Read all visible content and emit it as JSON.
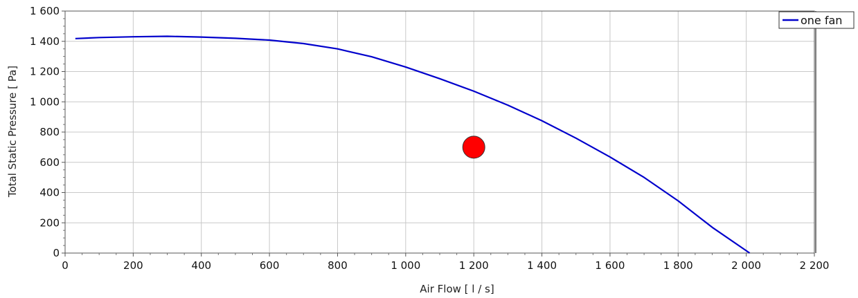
{
  "chart_data": {
    "type": "line",
    "title": "",
    "xlabel": "Air Flow  [ l / s]",
    "ylabel": "Total Static Pressure  [ Pa]",
    "xlim": [
      0,
      2200
    ],
    "ylim": [
      0,
      1600
    ],
    "x_ticks": [
      0,
      200,
      400,
      600,
      800,
      1000,
      1200,
      1400,
      1600,
      1800,
      2000,
      2200
    ],
    "x_tick_labels": [
      "0",
      "200",
      "400",
      "600",
      "800",
      "1 000",
      "1 200",
      "1 400",
      "1 600",
      "1 800",
      "2 000",
      "2 200"
    ],
    "y_ticks": [
      0,
      200,
      400,
      600,
      800,
      1000,
      1200,
      1400,
      1600
    ],
    "y_tick_labels": [
      "0",
      "200",
      "400",
      "600",
      "800",
      "1 000",
      "1 200",
      "1 400",
      "1 600"
    ],
    "grid": true,
    "legend_position": "top-right",
    "colors": {
      "series": "#0000cc",
      "operating_point": "#ff0000",
      "grid": "#c8c8c8"
    },
    "series": [
      {
        "name": "one fan",
        "x": [
          30,
          100,
          200,
          300,
          400,
          500,
          600,
          700,
          800,
          900,
          1000,
          1100,
          1200,
          1300,
          1400,
          1500,
          1600,
          1700,
          1800,
          1900,
          2010
        ],
        "y": [
          1418,
          1425,
          1430,
          1433,
          1428,
          1420,
          1408,
          1385,
          1350,
          1298,
          1230,
          1153,
          1070,
          978,
          875,
          760,
          635,
          500,
          345,
          170,
          0
        ]
      }
    ],
    "operating_point": {
      "x": 1200,
      "y": 700
    }
  }
}
